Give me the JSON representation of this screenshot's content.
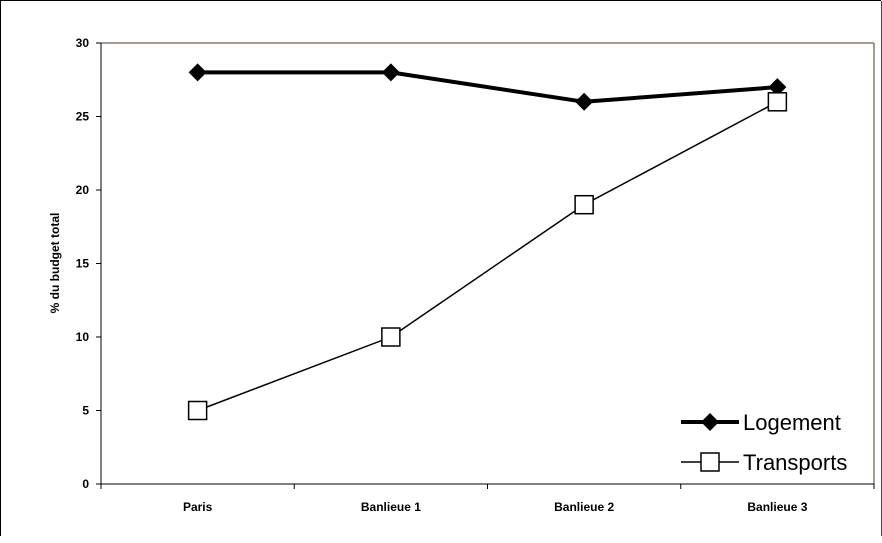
{
  "chart_data": {
    "type": "line",
    "title": "",
    "xlabel": "",
    "ylabel": "% du budget total",
    "categories": [
      "Paris",
      "Banlieue 1",
      "Banlieue 2",
      "Banlieue 3"
    ],
    "ylim": [
      0,
      30
    ],
    "yticks": [
      0,
      5,
      10,
      15,
      20,
      25,
      30
    ],
    "grid": false,
    "legend_position": "bottom-right",
    "series": [
      {
        "name": "Logement",
        "values": [
          28,
          28,
          26,
          27
        ],
        "color": "#000000",
        "marker": "filled-diamond"
      },
      {
        "name": "Transports",
        "values": [
          5,
          10,
          19,
          26
        ],
        "color": "#000000",
        "marker": "open-square"
      }
    ]
  }
}
